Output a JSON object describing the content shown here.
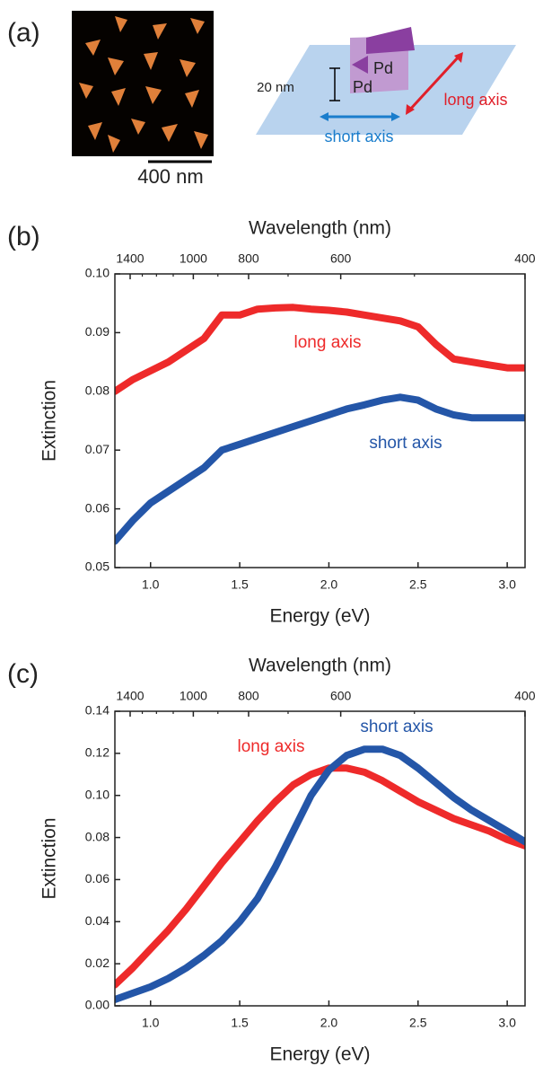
{
  "panel_a": {
    "label": "(a)",
    "scale_bar": "400 nm",
    "height_label": "20 nm",
    "metal_labels": [
      "Pd",
      "Pd"
    ],
    "long_axis": "long axis",
    "short_axis": "short axis"
  },
  "chart_data": [
    {
      "type": "line",
      "panel_label": "(b)",
      "x_label": "Energy (eV)",
      "y_label": "Extinction",
      "x2_label": "Wavelength (nm)",
      "x": [
        0.8,
        0.9,
        1.0,
        1.1,
        1.2,
        1.3,
        1.4,
        1.5,
        1.6,
        1.7,
        1.8,
        1.9,
        2.0,
        2.1,
        2.2,
        2.3,
        2.4,
        2.5,
        2.6,
        2.7,
        2.8,
        2.9,
        3.0,
        3.1
      ],
      "series": [
        {
          "name": "long axis",
          "color": "#ee2a2a",
          "values": [
            0.08,
            0.082,
            0.0835,
            0.085,
            0.087,
            0.089,
            0.093,
            0.093,
            0.094,
            0.0942,
            0.0943,
            0.094,
            0.0938,
            0.0935,
            0.093,
            0.0925,
            0.092,
            0.091,
            0.088,
            0.0855,
            0.085,
            0.0845,
            0.084,
            0.084
          ]
        },
        {
          "name": "short axis",
          "color": "#2456a8",
          "values": [
            0.0545,
            0.058,
            0.061,
            0.063,
            0.065,
            0.067,
            0.07,
            0.071,
            0.072,
            0.073,
            0.074,
            0.075,
            0.076,
            0.077,
            0.0777,
            0.0785,
            0.079,
            0.0785,
            0.077,
            0.076,
            0.0755,
            0.0755,
            0.0755,
            0.0755
          ]
        }
      ],
      "xlim": [
        0.8,
        3.1
      ],
      "xticks": [
        {
          "value": 1,
          "label": "1.0"
        },
        1.5,
        {
          "value": 2,
          "label": "2.0"
        },
        2.5,
        {
          "value": 3,
          "label": "3.0"
        }
      ],
      "ylim": [
        0.05,
        0.1
      ],
      "yticks": [
        0.05,
        0.06,
        0.07,
        0.08,
        0.09,
        {
          "value": 0.1,
          "label": "0.10"
        }
      ],
      "x2scale": "reciprocal",
      "x2ticks": [
        1400,
        1000,
        800,
        600,
        400
      ],
      "x2minorticks": [
        1300,
        1200,
        1100,
        900,
        700,
        500
      ]
    },
    {
      "type": "line",
      "panel_label": "(c)",
      "x_label": "Energy (eV)",
      "y_label": "Extinction",
      "x2_label": "Wavelength (nm)",
      "x": [
        0.8,
        0.9,
        1.0,
        1.1,
        1.2,
        1.3,
        1.4,
        1.5,
        1.6,
        1.7,
        1.8,
        1.9,
        2.0,
        2.1,
        2.2,
        2.3,
        2.4,
        2.5,
        2.6,
        2.7,
        2.8,
        2.9,
        3.0,
        3.1
      ],
      "series": [
        {
          "name": "long axis",
          "color": "#ee2a2a",
          "values": [
            0.01,
            0.018,
            0.027,
            0.036,
            0.046,
            0.057,
            0.068,
            0.078,
            0.088,
            0.097,
            0.105,
            0.11,
            0.113,
            0.113,
            0.111,
            0.107,
            0.102,
            0.097,
            0.093,
            0.089,
            0.086,
            0.083,
            0.079,
            0.076
          ]
        },
        {
          "name": "short axis",
          "color": "#2456a8",
          "values": [
            0.003,
            0.006,
            0.009,
            0.013,
            0.018,
            0.024,
            0.031,
            0.04,
            0.051,
            0.066,
            0.083,
            0.1,
            0.112,
            0.119,
            0.122,
            0.122,
            0.119,
            0.113,
            0.106,
            0.099,
            0.093,
            0.088,
            0.083,
            0.078
          ]
        }
      ],
      "xlim": [
        0.8,
        3.1
      ],
      "xticks": [
        {
          "value": 1,
          "label": "1.0"
        },
        1.5,
        {
          "value": 2,
          "label": "2.0"
        },
        2.5,
        {
          "value": 3,
          "label": "3.0"
        }
      ],
      "ylim": [
        0,
        0.14
      ],
      "yticks": [
        {
          "value": 0,
          "label": "0.00"
        },
        0.02,
        0.04,
        0.06,
        0.08,
        {
          "value": 0.1,
          "label": "0.10"
        },
        0.12,
        0.14
      ],
      "x2scale": "reciprocal",
      "x2ticks": [
        1400,
        1000,
        800,
        600,
        400
      ],
      "x2minorticks": [
        1300,
        1200,
        1100,
        900,
        700,
        500
      ]
    }
  ]
}
